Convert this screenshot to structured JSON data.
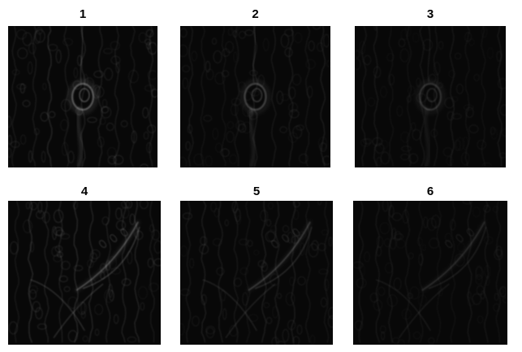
{
  "panels": [
    {
      "label": "1",
      "motif": "knot",
      "intensity": 1.0
    },
    {
      "label": "2",
      "motif": "knot",
      "intensity": 0.7
    },
    {
      "label": "3",
      "motif": "knot",
      "intensity": 0.5
    },
    {
      "label": "4",
      "motif": "leaf",
      "intensity": 1.0
    },
    {
      "label": "5",
      "motif": "leaf",
      "intensity": 0.7
    },
    {
      "label": "6",
      "motif": "leaf",
      "intensity": 0.5
    }
  ],
  "colors": {
    "background": "#ffffff",
    "image_bg": "#080808",
    "texture": "#d8d8d8",
    "label": "#000000"
  }
}
